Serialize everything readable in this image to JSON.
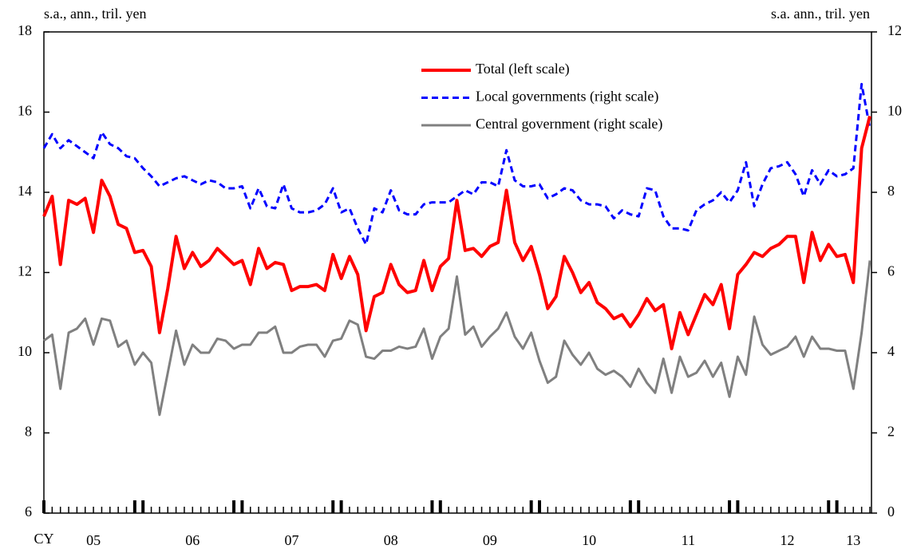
{
  "chart_data": {
    "type": "line",
    "y_label": "s.a., ann., tril. yen",
    "y2_label": "s.a. ann., tril. yen",
    "xlabel": "CY",
    "categories": [
      null,
      null,
      null,
      null,
      null,
      null,
      "05",
      null,
      null,
      null,
      null,
      null,
      null,
      null,
      null,
      null,
      null,
      null,
      "06",
      null,
      null,
      null,
      null,
      null,
      null,
      null,
      null,
      null,
      null,
      null,
      "07",
      null,
      null,
      null,
      null,
      null,
      null,
      null,
      null,
      null,
      null,
      null,
      "08",
      null,
      null,
      null,
      null,
      null,
      null,
      null,
      null,
      null,
      null,
      null,
      "09",
      null,
      null,
      null,
      null,
      null,
      null,
      null,
      null,
      null,
      null,
      null,
      "10",
      null,
      null,
      null,
      null,
      null,
      null,
      null,
      null,
      null,
      null,
      null,
      "11",
      null,
      null,
      null,
      null,
      null,
      null,
      null,
      null,
      null,
      null,
      null,
      "12",
      null,
      null,
      null,
      null,
      null,
      null,
      null,
      "13",
      null,
      null
    ],
    "ylim": [
      6,
      18
    ],
    "yticks": [
      6,
      8,
      10,
      12,
      14,
      16,
      18
    ],
    "y2lim": [
      0,
      12
    ],
    "y2ticks": [
      0,
      2,
      4,
      6,
      8,
      10,
      12
    ],
    "series": [
      {
        "name": "Total (left scale)",
        "color": "#ff0000",
        "style": "solid",
        "values": [
          13.4,
          13.9,
          12.2,
          13.8,
          13.7,
          13.85,
          13.0,
          14.3,
          13.9,
          13.2,
          13.1,
          12.5,
          12.55,
          12.15,
          10.5,
          11.6,
          12.9,
          12.1,
          12.5,
          12.15,
          12.3,
          12.6,
          12.4,
          12.2,
          12.3,
          11.7,
          12.6,
          12.1,
          12.25,
          12.2,
          11.55,
          11.65,
          11.65,
          11.7,
          11.55,
          12.45,
          11.85,
          12.4,
          11.95,
          10.55,
          11.4,
          11.5,
          12.2,
          11.7,
          11.5,
          11.55,
          12.3,
          11.55,
          12.15,
          12.35,
          13.8,
          12.55,
          12.6,
          12.4,
          12.65,
          12.75,
          14.05,
          12.75,
          12.3,
          12.65,
          11.95,
          11.1,
          11.4,
          12.4,
          12.0,
          11.5,
          11.75,
          11.25,
          11.1,
          10.85,
          10.95,
          10.65,
          10.95,
          11.35,
          11.05,
          11.2,
          10.1,
          11.0,
          10.45,
          10.95,
          11.45,
          11.2,
          11.7,
          10.6,
          11.95,
          12.2,
          12.5,
          12.4,
          12.6,
          12.7,
          12.9,
          12.9,
          11.75,
          13.0,
          12.3,
          12.7,
          12.4,
          12.45,
          11.75,
          15.1,
          15.9
        ]
      },
      {
        "name": "Local governments (right scale)",
        "color": "#0000ff",
        "style": "dashed",
        "axis": "y2",
        "values": [
          9.1,
          9.45,
          9.1,
          9.3,
          9.15,
          9.0,
          8.85,
          9.5,
          9.2,
          9.1,
          8.9,
          8.85,
          8.6,
          8.4,
          8.15,
          8.25,
          8.35,
          8.4,
          8.3,
          8.2,
          8.3,
          8.25,
          8.1,
          8.1,
          8.15,
          7.6,
          8.1,
          7.65,
          7.6,
          8.2,
          7.6,
          7.5,
          7.5,
          7.55,
          7.7,
          8.1,
          7.5,
          7.6,
          7.1,
          6.7,
          7.6,
          7.5,
          8.05,
          7.55,
          7.45,
          7.45,
          7.7,
          7.75,
          7.75,
          7.75,
          7.9,
          8.05,
          7.95,
          8.25,
          8.25,
          8.15,
          9.05,
          8.3,
          8.15,
          8.15,
          8.2,
          7.85,
          7.95,
          8.1,
          8.05,
          7.8,
          7.7,
          7.7,
          7.65,
          7.35,
          7.55,
          7.45,
          7.4,
          8.1,
          8.05,
          7.4,
          7.1,
          7.1,
          7.05,
          7.55,
          7.7,
          7.8,
          8.0,
          7.75,
          8.05,
          8.75,
          7.65,
          8.2,
          8.6,
          8.65,
          8.75,
          8.45,
          7.9,
          8.55,
          8.2,
          8.55,
          8.4,
          8.45,
          8.6,
          10.7,
          9.6
        ]
      },
      {
        "name": "Central government (right scale)",
        "color": "#808080",
        "style": "solid",
        "axis": "y2",
        "values": [
          4.3,
          4.45,
          3.1,
          4.5,
          4.6,
          4.85,
          4.2,
          4.85,
          4.8,
          4.15,
          4.3,
          3.7,
          4.0,
          3.75,
          2.45,
          3.5,
          4.55,
          3.7,
          4.2,
          4.0,
          4.0,
          4.35,
          4.3,
          4.1,
          4.2,
          4.2,
          4.5,
          4.5,
          4.65,
          4.0,
          4.0,
          4.15,
          4.2,
          4.2,
          3.9,
          4.3,
          4.35,
          4.8,
          4.7,
          3.9,
          3.85,
          4.05,
          4.05,
          4.15,
          4.1,
          4.15,
          4.6,
          3.85,
          4.4,
          4.6,
          5.9,
          4.45,
          4.65,
          4.15,
          4.4,
          4.6,
          5.0,
          4.4,
          4.1,
          4.5,
          3.8,
          3.25,
          3.4,
          4.3,
          3.95,
          3.7,
          4.0,
          3.6,
          3.45,
          3.55,
          3.4,
          3.15,
          3.6,
          3.25,
          3.0,
          3.85,
          3.0,
          3.9,
          3.4,
          3.5,
          3.8,
          3.4,
          3.75,
          2.9,
          3.9,
          3.45,
          4.9,
          4.2,
          3.95,
          4.05,
          4.15,
          4.4,
          3.9,
          4.4,
          4.1,
          4.1,
          4.05,
          4.05,
          3.1,
          4.5,
          6.3
        ]
      }
    ]
  }
}
